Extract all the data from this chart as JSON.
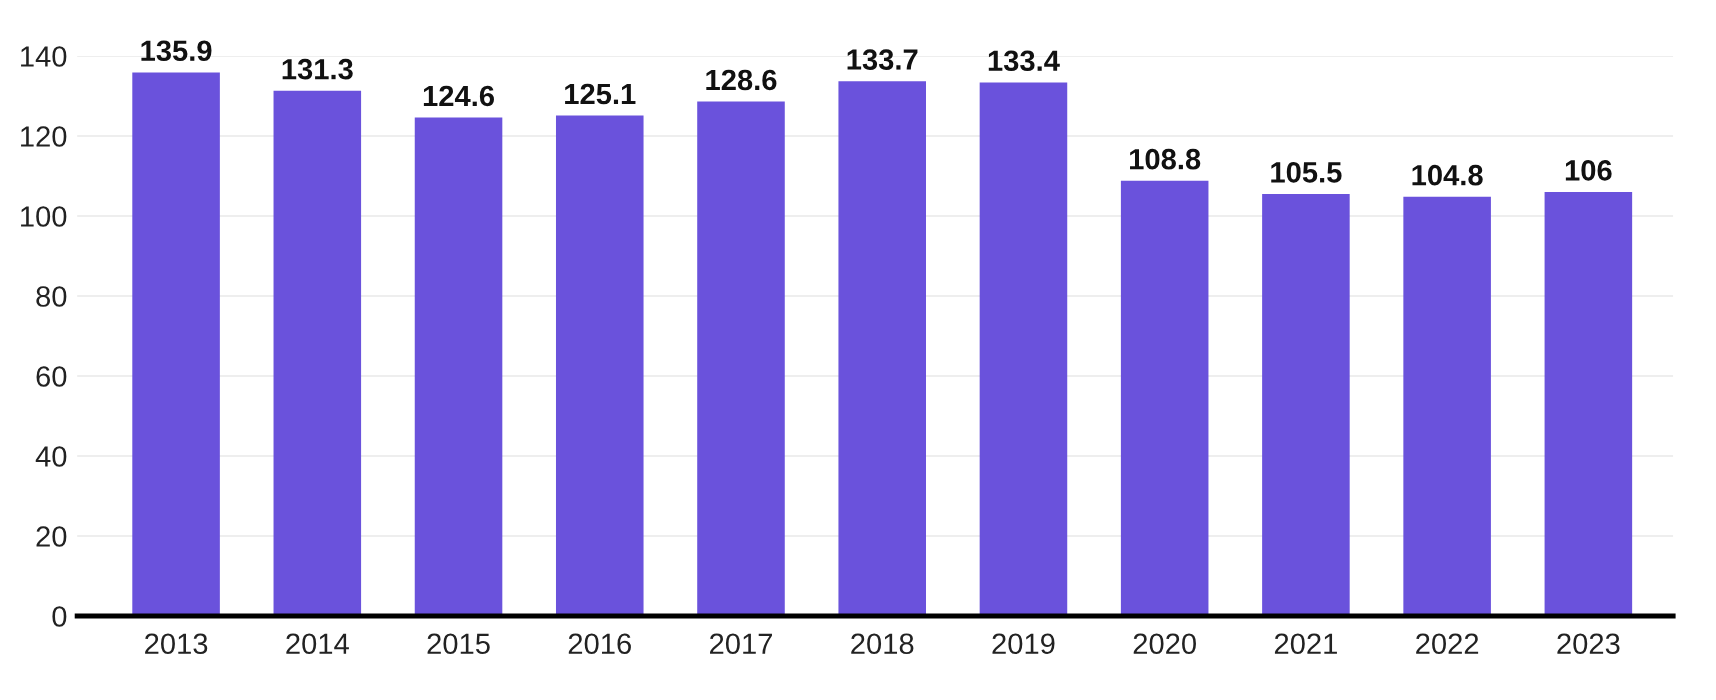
{
  "chart_data": {
    "type": "bar",
    "categories": [
      "2013",
      "2014",
      "2015",
      "2016",
      "2017",
      "2018",
      "2019",
      "2020",
      "2021",
      "2022",
      "2023"
    ],
    "values": [
      135.9,
      131.3,
      124.6,
      125.1,
      128.6,
      133.7,
      133.4,
      108.8,
      105.5,
      104.8,
      106
    ],
    "color": "#6a52dc",
    "ylim": [
      0,
      140
    ],
    "yticks": [
      0,
      20,
      40,
      60,
      80,
      100,
      120,
      140
    ],
    "grid": "y",
    "data_labels": true
  }
}
